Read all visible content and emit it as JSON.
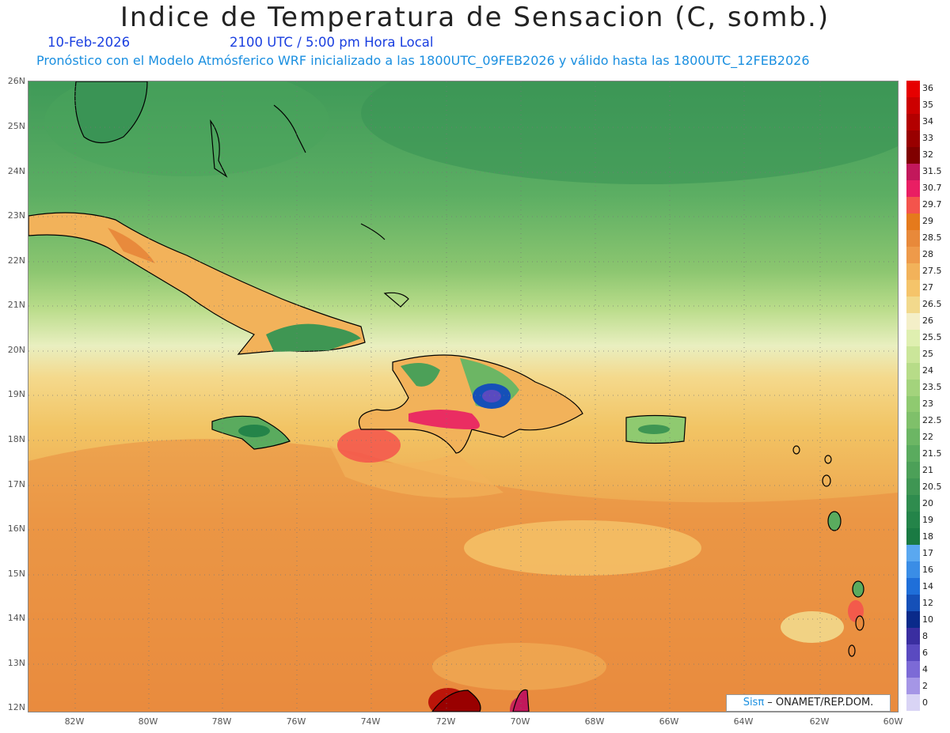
{
  "header": {
    "title": "Indice de Temperatura de Sensacion (C, somb.)",
    "date": "10-Feb-2026",
    "time": "2100 UTC / 5:00 pm Hora Local",
    "model_line": "Pronóstico con el Modelo Atmósferico WRF inicializado a las 1800UTC_09FEB2026 y válido hasta las  1800UTC_12FEB2026"
  },
  "axes": {
    "lat_labels": [
      "26N",
      "25N",
      "24N",
      "23N",
      "22N",
      "21N",
      "20N",
      "19N",
      "18N",
      "17N",
      "16N",
      "15N",
      "14N",
      "13N",
      "12N"
    ],
    "lon_labels": [
      "82W",
      "80W",
      "78W",
      "76W",
      "74W",
      "72W",
      "70W",
      "68W",
      "66W",
      "64W",
      "62W",
      "60W"
    ]
  },
  "colorbar": {
    "labels": [
      "36",
      "35",
      "34",
      "33",
      "32",
      "31.5",
      "30.7",
      "29.7",
      "29",
      "28.5",
      "28",
      "27.5",
      "27",
      "26.5",
      "26",
      "25.5",
      "25",
      "24",
      "23.5",
      "23",
      "22.5",
      "22",
      "21.5",
      "21",
      "20.5",
      "20",
      "19",
      "18",
      "17",
      "16",
      "14",
      "12",
      "10",
      "8",
      "6",
      "4",
      "2",
      "0"
    ],
    "colors": [
      "#e60000",
      "#cc0000",
      "#b30000",
      "#990000",
      "#800000",
      "#c2185b",
      "#e91e63",
      "#f4544c",
      "#e57a1c",
      "#e8893a",
      "#ee9a4a",
      "#f2b25a",
      "#f5c46a",
      "#f2d98c",
      "#f4efc8",
      "#dfefb0",
      "#cbe69a",
      "#b7dc88",
      "#a3d37c",
      "#8fca70",
      "#7fc06a",
      "#6cb664",
      "#5aab5e",
      "#4ca058",
      "#3f9653",
      "#2f8c4e",
      "#248449",
      "#1a7a43",
      "#5aa8f0",
      "#3a8de6",
      "#1f6fd9",
      "#1550b8",
      "#0a2a8a",
      "#3a2ea0",
      "#5a4ac0",
      "#7c6ad6",
      "#a596e6",
      "#d9d4f5"
    ]
  },
  "credit": {
    "sis": "Sisπ",
    "text": " – ONAMET/REP.DOM."
  }
}
